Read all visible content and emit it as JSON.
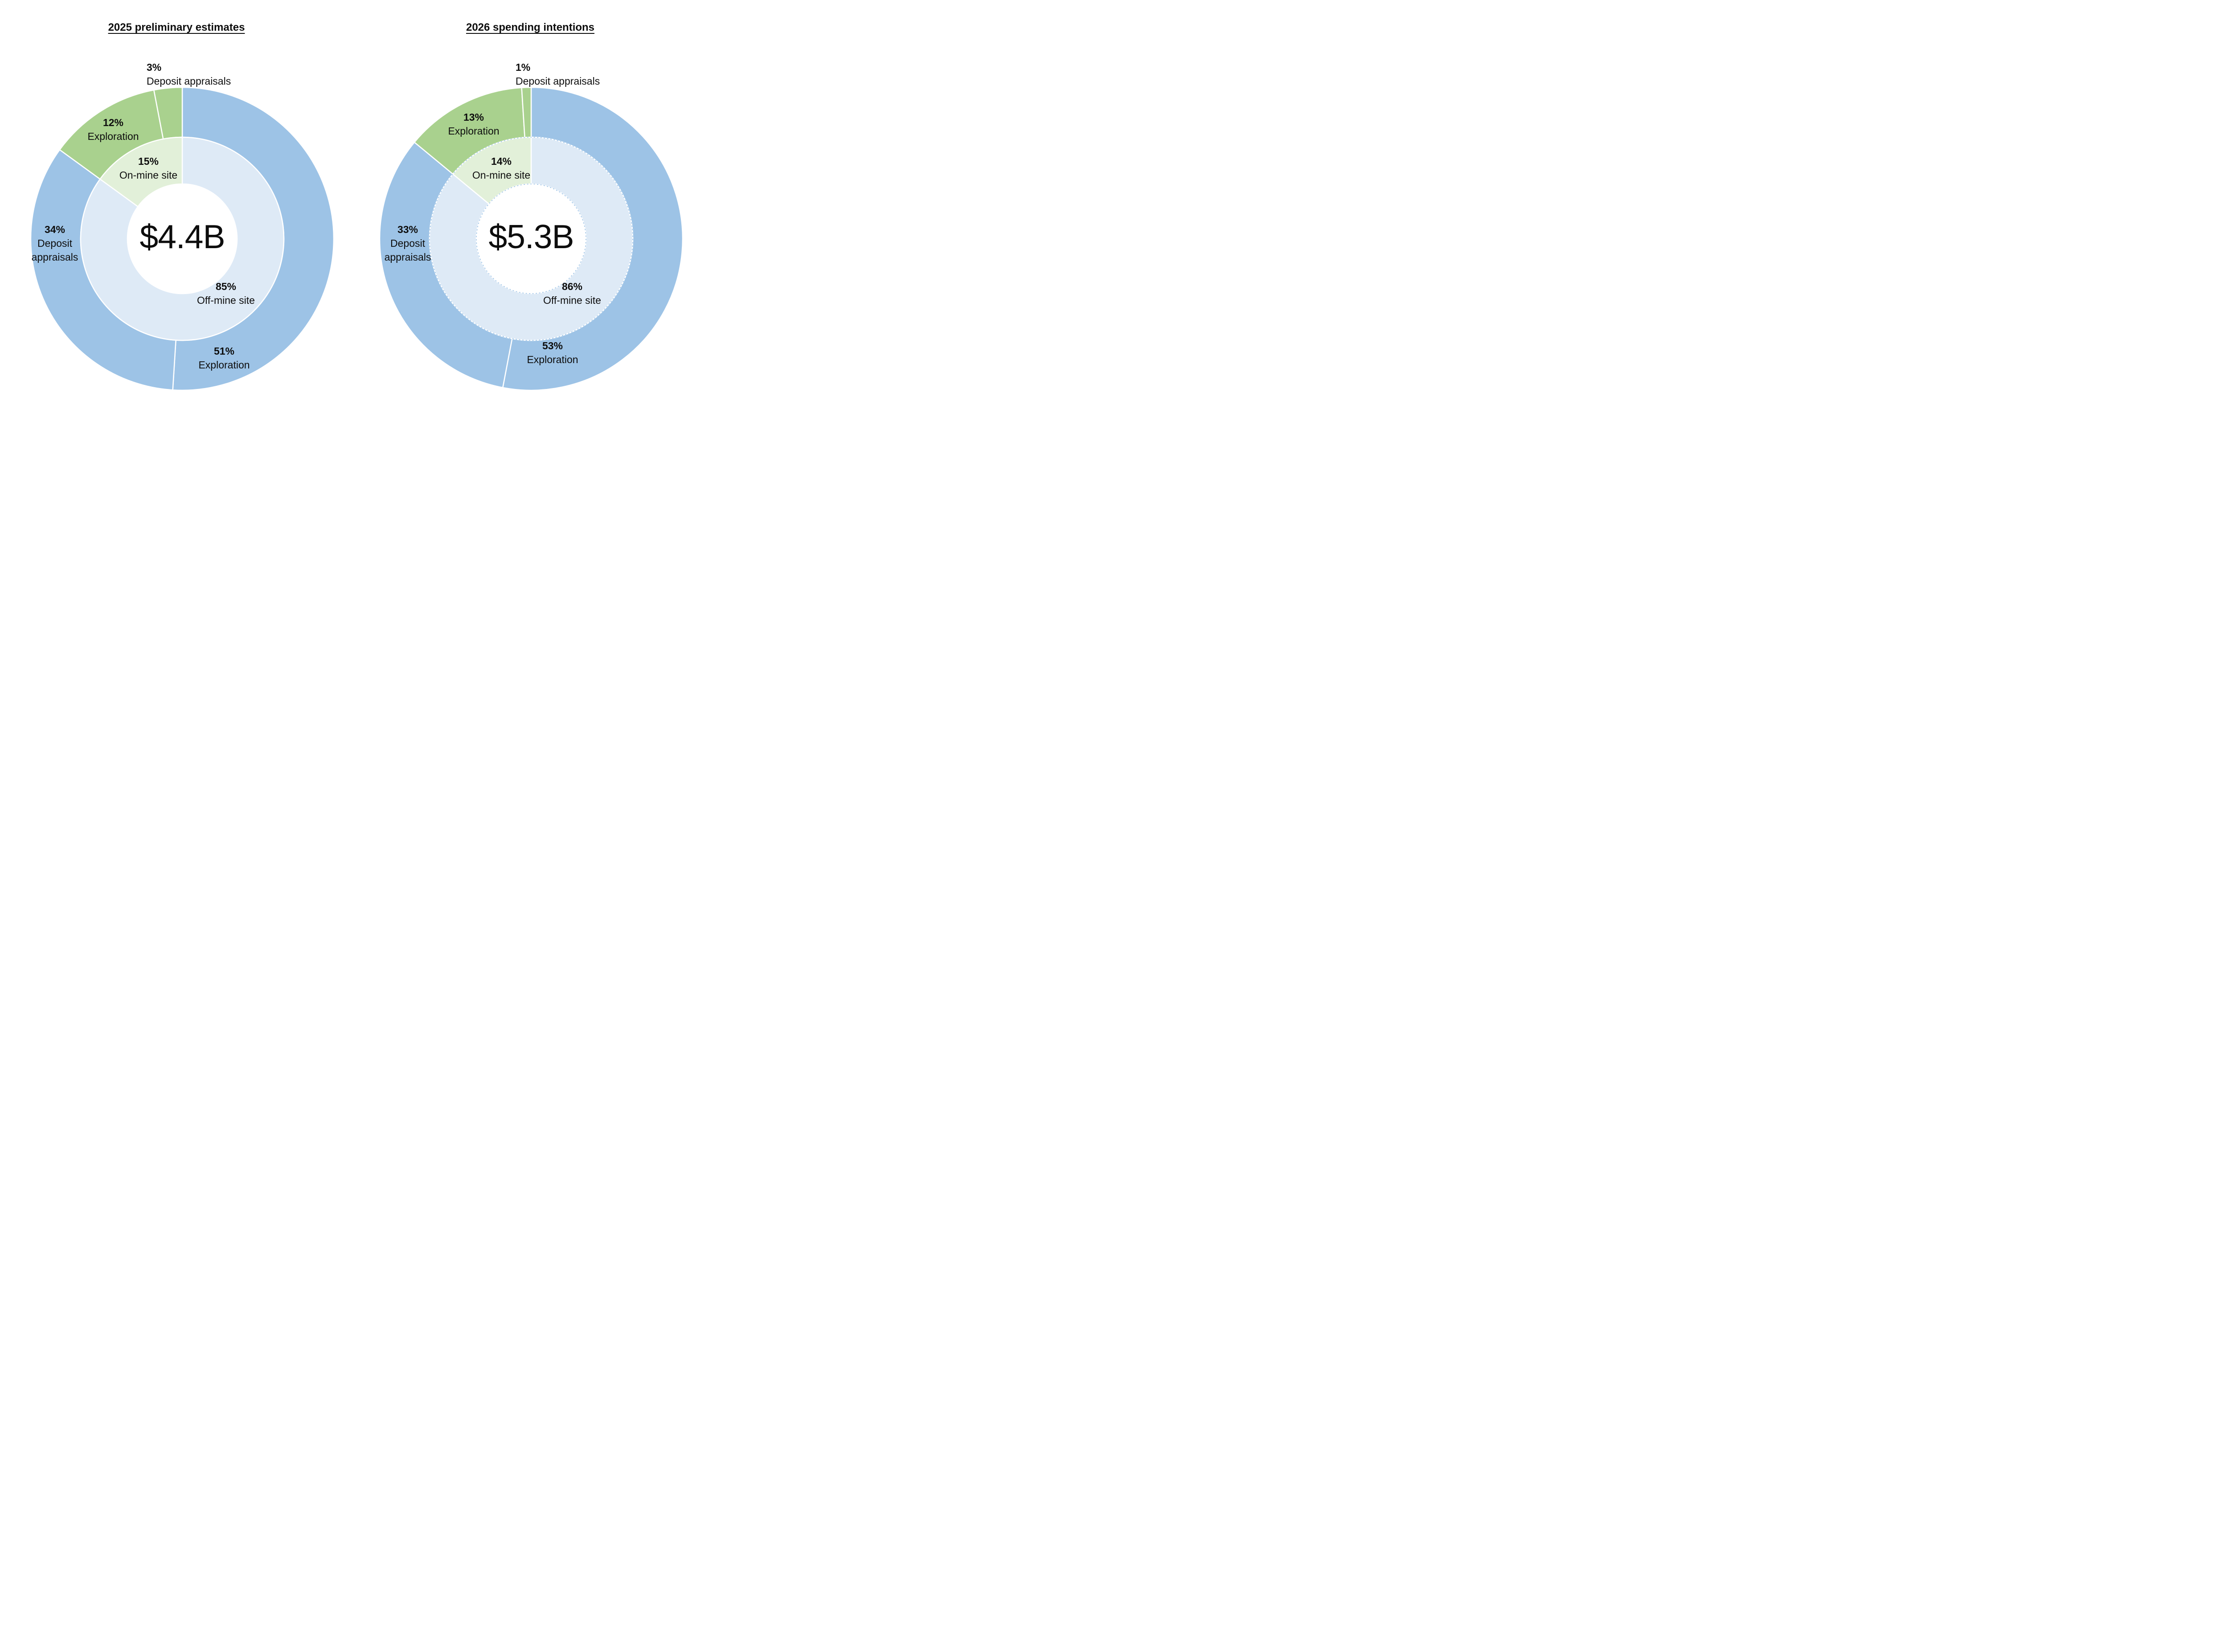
{
  "charts": [
    {
      "title": "2025 preliminary estimates",
      "center_value": "$4.4B",
      "labels": [
        {
          "pct": "3%",
          "lines": [
            "Deposit appraisals"
          ]
        },
        {
          "pct": "12%",
          "lines": [
            "Exploration"
          ]
        },
        {
          "pct": "15%",
          "lines": [
            "On-mine site"
          ]
        },
        {
          "pct": "34%",
          "lines": [
            "Deposit",
            "appraisals"
          ]
        },
        {
          "pct": "85%",
          "lines": [
            "Off-mine site"
          ]
        },
        {
          "pct": "51%",
          "lines": [
            "Exploration"
          ]
        }
      ]
    },
    {
      "title": "2026 spending intentions",
      "center_value": "$5.3B",
      "labels": [
        {
          "pct": "1%",
          "lines": [
            "Deposit appraisals"
          ]
        },
        {
          "pct": "13%",
          "lines": [
            "Exploration"
          ]
        },
        {
          "pct": "14%",
          "lines": [
            "On-mine site"
          ]
        },
        {
          "pct": "33%",
          "lines": [
            "Deposit",
            "appraisals"
          ]
        },
        {
          "pct": "86%",
          "lines": [
            "Off-mine site"
          ]
        },
        {
          "pct": "53%",
          "lines": [
            "Exploration"
          ]
        }
      ]
    }
  ],
  "colors": {
    "exploration_blue": "#9DC3E6",
    "off_mine_pale_blue": "#DEEAF6",
    "exploration_green": "#A9D18E",
    "on_mine_pale_green": "#E2F0D9",
    "divider_white": "#FFFFFF",
    "dashed_border_blue": "#9DC3E6",
    "text_black": "#0D0D0D"
  },
  "chart_data": [
    {
      "type": "pie",
      "variant": "nested_donut",
      "title": "2025 preliminary estimates",
      "center_label": "$4.4B",
      "start_angle_deg": 0,
      "direction": "clockwise",
      "dashed_inner_border": false,
      "rings": {
        "inner": [
          {
            "label": "Off-mine site",
            "value": 85,
            "color": "#DEEAF6"
          },
          {
            "label": "On-mine site",
            "value": 15,
            "color": "#E2F0D9"
          }
        ],
        "outer": [
          {
            "label": "Exploration",
            "value": 51,
            "color": "#9DC3E6"
          },
          {
            "label": "Deposit appraisals",
            "value": 34,
            "color": "#9DC3E6"
          },
          {
            "label": "Exploration",
            "value": 12,
            "color": "#A9D18E"
          },
          {
            "label": "Deposit appraisals",
            "value": 3,
            "color": "#A9D18E"
          }
        ]
      }
    },
    {
      "type": "pie",
      "variant": "nested_donut",
      "title": "2026 spending intentions",
      "center_label": "$5.3B",
      "start_angle_deg": 0,
      "direction": "clockwise",
      "dashed_inner_border": true,
      "rings": {
        "inner": [
          {
            "label": "Off-mine site",
            "value": 86,
            "color": "#DEEAF6"
          },
          {
            "label": "On-mine site",
            "value": 14,
            "color": "#E2F0D9"
          }
        ],
        "outer": [
          {
            "label": "Exploration",
            "value": 53,
            "color": "#9DC3E6"
          },
          {
            "label": "Deposit appraisals",
            "value": 33,
            "color": "#9DC3E6"
          },
          {
            "label": "Exploration",
            "value": 13,
            "color": "#A9D18E"
          },
          {
            "label": "Deposit appraisals",
            "value": 1,
            "color": "#A9D18E"
          }
        ]
      }
    }
  ]
}
